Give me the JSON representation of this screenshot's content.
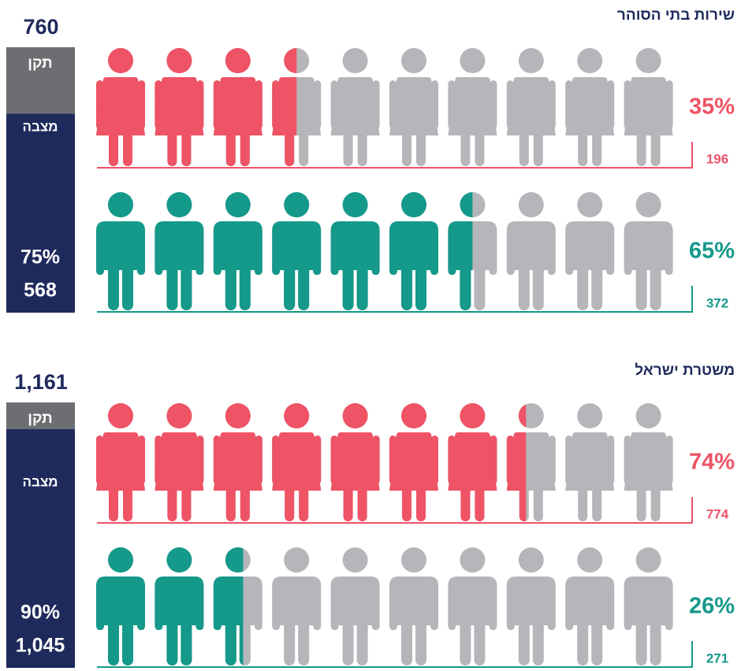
{
  "chart_data": [
    {
      "type": "pictograph",
      "title": "שירות בתי הסוהר",
      "total": 760,
      "quota_label": "תקן",
      "staff_label": "מצבה",
      "staff_percent": 75,
      "staff_percent_label": "75%",
      "staff_count": 568,
      "quota_color": "#6d6e71",
      "staff_color": "#1f2a5c",
      "empty_color": "#b5b6ba",
      "groups": [
        {
          "icon": "woman",
          "color": "#ef5366",
          "percent": 35,
          "percent_label": "35%",
          "count": 196
        },
        {
          "icon": "man",
          "color": "#14998a",
          "percent": 65,
          "percent_label": "65%",
          "count": 372
        }
      ]
    },
    {
      "type": "pictograph",
      "title": "משטרת ישראל",
      "total": {
        "value": 1161,
        "label": "1,161"
      },
      "quota_label": "תקן",
      "staff_label": "מצבה",
      "staff_percent": 90,
      "staff_percent_label": "90%",
      "staff_count": {
        "value": 1045,
        "label": "1,045"
      },
      "quota_color": "#6d6e71",
      "staff_color": "#1f2a5c",
      "empty_color": "#b5b6ba",
      "groups": [
        {
          "icon": "woman",
          "color": "#ef5366",
          "percent": 74,
          "percent_label": "74%",
          "count": 774
        },
        {
          "icon": "man",
          "color": "#14998a",
          "percent": 26,
          "percent_label": "26%",
          "count": 271
        }
      ]
    }
  ]
}
